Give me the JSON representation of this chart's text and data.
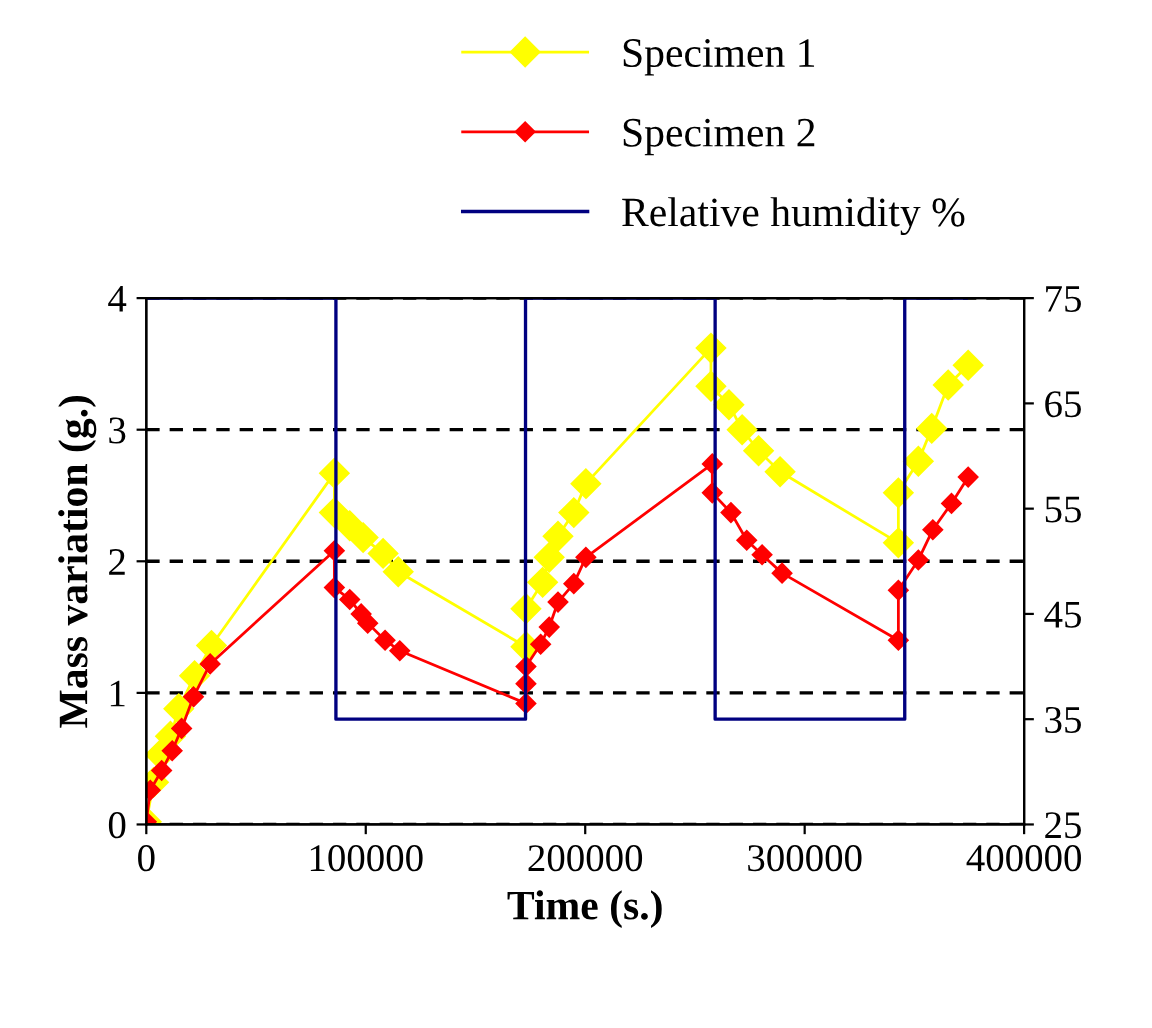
{
  "chart_data": {
    "type": "line",
    "xlabel": "Time (s.)",
    "ylabel": "Mass variation (g.)",
    "xlim": [
      0,
      400000
    ],
    "xticks": [
      0,
      100000,
      200000,
      300000,
      400000
    ],
    "ylim": [
      0,
      4
    ],
    "yticks": [
      0,
      1,
      2,
      3,
      4
    ],
    "y2lim": [
      25,
      75
    ],
    "y2ticks": [
      25,
      35,
      45,
      55,
      65,
      75
    ],
    "grid": "y",
    "legend": "top",
    "series": [
      {
        "name": "Specimen 1",
        "color": "#ffff00",
        "marker": "diamond",
        "x": [
          0,
          3300,
          6400,
          11000,
          14800,
          22000,
          29700,
          85700,
          85700,
          92700,
          98800,
          107900,
          114800,
          173000,
          173000,
          180600,
          183600,
          187600,
          194800,
          200300,
          257300,
          257300,
          265500,
          271500,
          279000,
          288800,
          342700,
          342700,
          351800,
          357900,
          365400,
          374500
        ],
        "values": [
          0.02,
          0.32,
          0.53,
          0.67,
          0.88,
          1.13,
          1.36,
          2.67,
          2.37,
          2.27,
          2.18,
          2.06,
          1.92,
          1.35,
          1.64,
          1.84,
          2.03,
          2.19,
          2.37,
          2.59,
          3.62,
          3.33,
          3.19,
          3.0,
          2.84,
          2.68,
          2.14,
          2.52,
          2.76,
          3.01,
          3.34,
          3.49
        ]
      },
      {
        "name": "Specimen 2",
        "color": "#ff0000",
        "marker": "diamond",
        "x": [
          0,
          1800,
          7000,
          11800,
          16100,
          21500,
          29100,
          85700,
          85700,
          92700,
          97900,
          100900,
          108800,
          115500,
          173000,
          173000,
          173000,
          179700,
          183600,
          187600,
          194800,
          200300,
          257900,
          257900,
          266400,
          273600,
          280600,
          289700,
          342700,
          342700,
          351800,
          358400,
          366900,
          374500
        ],
        "values": [
          0.02,
          0.26,
          0.41,
          0.56,
          0.73,
          0.97,
          1.22,
          2.08,
          1.8,
          1.71,
          1.6,
          1.53,
          1.4,
          1.32,
          0.92,
          1.07,
          1.2,
          1.37,
          1.5,
          1.69,
          1.83,
          2.03,
          2.74,
          2.52,
          2.37,
          2.16,
          2.05,
          1.91,
          1.4,
          1.78,
          2.01,
          2.24,
          2.44,
          2.64
        ]
      },
      {
        "name": "Relative humidity %",
        "color": "#000080",
        "marker": "none",
        "axis": "y2",
        "x": [
          0,
          86400,
          86400,
          172800,
          172800,
          259200,
          259200,
          345600,
          345600,
          373600
        ],
        "values": [
          75,
          75,
          35,
          35,
          75,
          75,
          35,
          35,
          75,
          75
        ]
      }
    ]
  }
}
